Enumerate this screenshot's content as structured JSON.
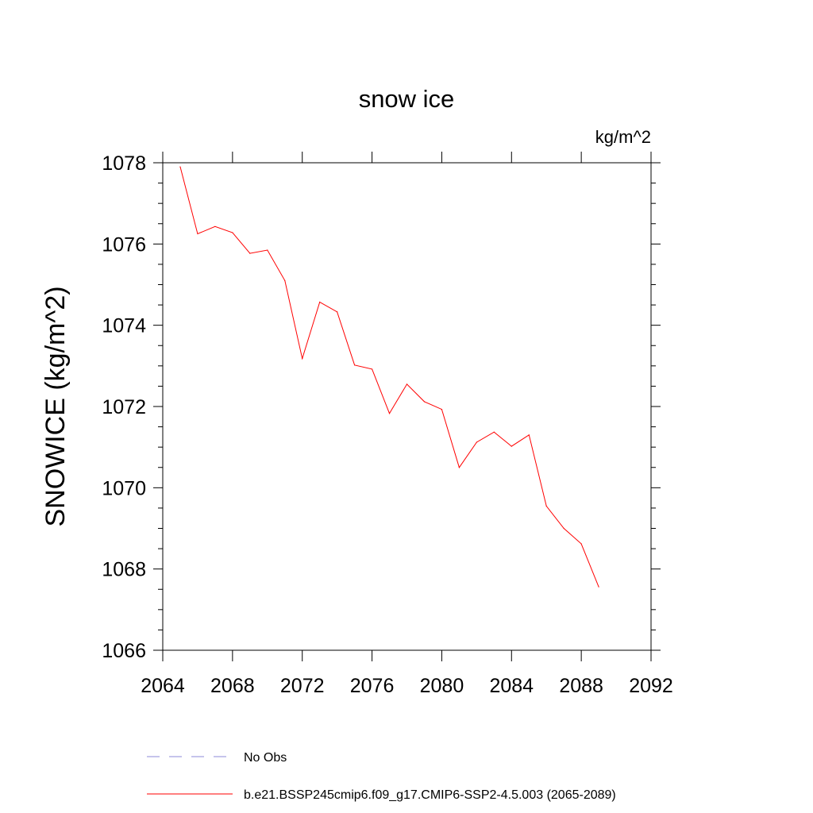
{
  "chart_data": {
    "type": "line",
    "title": "snow ice",
    "units_label": "kg/m^2",
    "xlabel": "",
    "ylabel": "SNOWICE  (kg/m^2)",
    "xlim": [
      2064,
      2092
    ],
    "ylim": [
      1066,
      1078
    ],
    "xticks": [
      2064,
      2068,
      2072,
      2076,
      2080,
      2084,
      2088,
      2092
    ],
    "yticks": [
      1066,
      1068,
      1070,
      1072,
      1074,
      1076,
      1078
    ],
    "xtick_labels": [
      "2064",
      "2068",
      "2072",
      "2076",
      "2080",
      "2084",
      "2088",
      "2092"
    ],
    "ytick_labels": [
      "1066",
      "1068",
      "1070",
      "1072",
      "1074",
      "1076",
      "1078"
    ],
    "grid": false,
    "legend_position": "bottom",
    "series": [
      {
        "name": "b.e21.BSSP245cmip6.f09_g17.CMIP6-SSP2-4.5.003 (2065-2089)",
        "color": "#ff0000",
        "style": "solid",
        "x": [
          2065,
          2066,
          2067,
          2068,
          2069,
          2070,
          2071,
          2072,
          2073,
          2074,
          2075,
          2076,
          2077,
          2078,
          2079,
          2080,
          2081,
          2082,
          2083,
          2084,
          2085,
          2086,
          2087,
          2088,
          2089
        ],
        "values": [
          1077.9,
          1076.25,
          1076.43,
          1076.28,
          1075.77,
          1075.85,
          1075.1,
          1073.18,
          1074.57,
          1074.33,
          1073.02,
          1072.92,
          1071.83,
          1072.55,
          1072.12,
          1071.93,
          1070.5,
          1071.12,
          1071.37,
          1071.02,
          1071.3,
          1069.55,
          1069.0,
          1068.62,
          1067.56
        ]
      }
    ],
    "legend": [
      {
        "label": "No Obs",
        "color": "#8e88d8",
        "style": "dashed"
      },
      {
        "label": "b.e21.BSSP245cmip6.f09_g17.CMIP6-SSP2-4.5.003 (2065-2089)",
        "color": "#ff0000",
        "style": "solid"
      }
    ]
  }
}
